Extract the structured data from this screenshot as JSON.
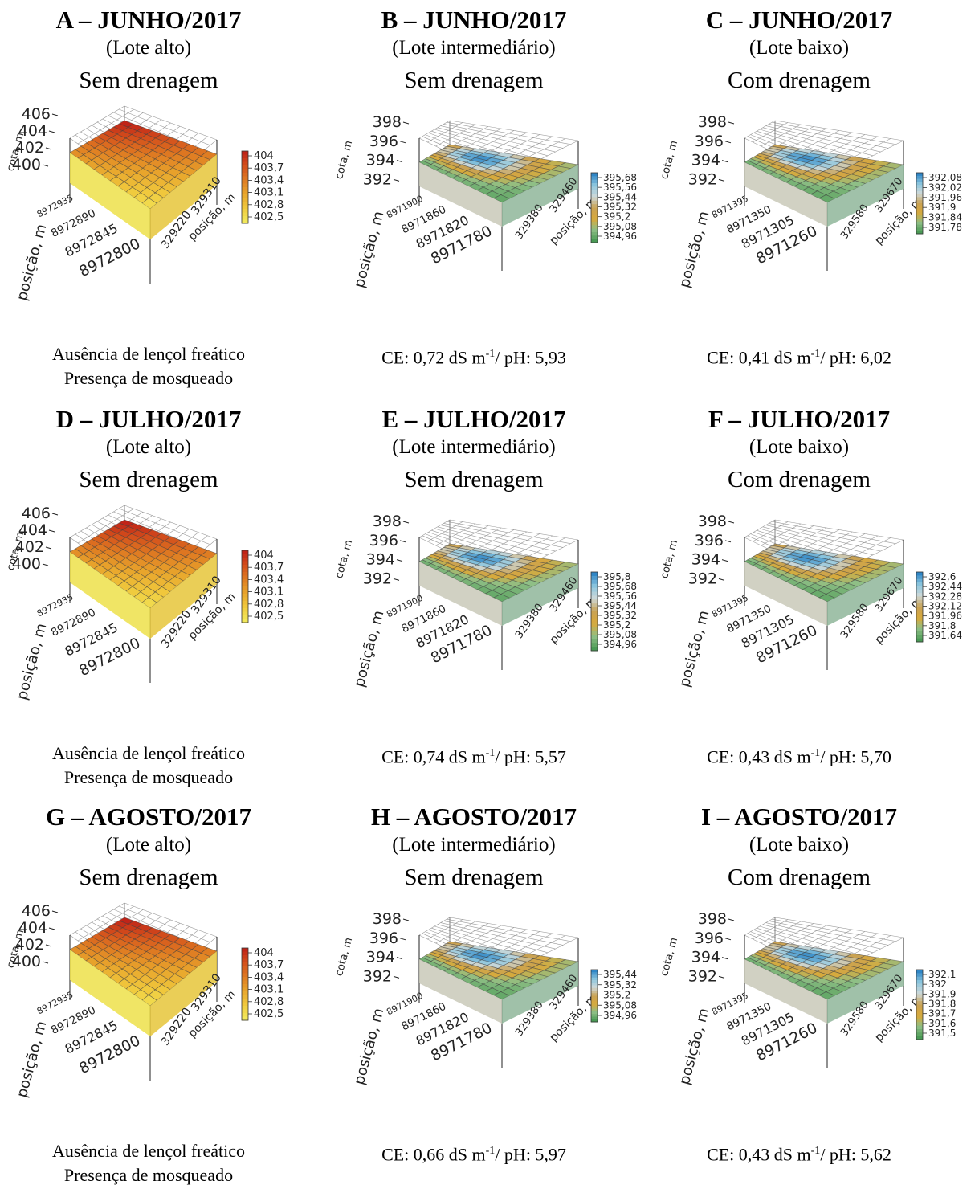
{
  "panels": [
    {
      "title": "A – JUNHO/2017",
      "lot": "(Lote alto)",
      "drainage": "Sem drenagem",
      "scheme": "red",
      "z_ticks": [
        "406",
        "404",
        "402",
        "400"
      ],
      "y_ticks": [
        "8972935",
        "8972890",
        "8972845",
        "8972800"
      ],
      "x_ticks": [
        "329220",
        "329310"
      ],
      "z_label": "cota, m",
      "y_label": "posição, m",
      "x_label": "posição, m",
      "legend": [
        "404",
        "403,7",
        "403,4",
        "403,1",
        "402,8",
        "402,5"
      ],
      "note_lines": [
        "Ausência de lençol freático",
        "Presença de mosqueado"
      ]
    },
    {
      "title": "B – JUNHO/2017",
      "lot": "(Lote intermediário)",
      "drainage": "Sem drenagem",
      "scheme": "bgb",
      "z_ticks": [
        "398",
        "396",
        "394",
        "392"
      ],
      "y_ticks": [
        "8971900",
        "8971860",
        "8971820",
        "8971780"
      ],
      "x_ticks": [
        "329380",
        "329460"
      ],
      "z_label": "cota, m",
      "y_label": "posição, m",
      "x_label": "posição, m",
      "legend": [
        "395,68",
        "395,56",
        "395,44",
        "395,32",
        "395,2",
        "395,08",
        "394,96"
      ],
      "ce": {
        "prefix": "CE: 0,72 dS m",
        "sup": "-1",
        "suffix": "/ pH: 5,93"
      }
    },
    {
      "title": "C – JUNHO/2017",
      "lot": "(Lote baixo)",
      "drainage": "Com drenagem",
      "scheme": "bgb",
      "z_ticks": [
        "398",
        "396",
        "394",
        "392"
      ],
      "y_ticks": [
        "8971395",
        "8971350",
        "8971305",
        "8971260"
      ],
      "x_ticks": [
        "329580",
        "329670"
      ],
      "z_label": "cota, m",
      "y_label": "posição, m",
      "x_label": "posição, m",
      "legend": [
        "392,08",
        "392,02",
        "391,96",
        "391,9",
        "391,84",
        "391,78"
      ],
      "ce": {
        "prefix": "CE: 0,41 dS m",
        "sup": "-1",
        "suffix": "/ pH: 6,02"
      }
    },
    {
      "title": "D – JULHO/2017",
      "lot": "(Lote alto)",
      "drainage": "Sem drenagem",
      "scheme": "red",
      "z_ticks": [
        "406",
        "404",
        "402",
        "400"
      ],
      "y_ticks": [
        "8972935",
        "8972890",
        "8972845",
        "8972800"
      ],
      "x_ticks": [
        "329220",
        "329310"
      ],
      "z_label": "cota, m",
      "y_label": "posição, m",
      "x_label": "posição, m",
      "legend": [
        "404",
        "403,7",
        "403,4",
        "403,1",
        "402,8",
        "402,5"
      ],
      "note_lines": [
        "Ausência de lençol freático",
        "Presença de mosqueado"
      ]
    },
    {
      "title": "E – JULHO/2017",
      "lot": "(Lote intermediário)",
      "drainage": "Sem drenagem",
      "scheme": "bgb",
      "z_ticks": [
        "398",
        "396",
        "394",
        "392"
      ],
      "y_ticks": [
        "8971900",
        "8971860",
        "8971820",
        "8971780"
      ],
      "x_ticks": [
        "329380",
        "329460"
      ],
      "z_label": "cota, m",
      "y_label": "posição, m",
      "x_label": "posição, m",
      "legend": [
        "395,8",
        "395,68",
        "395,56",
        "395,44",
        "395,32",
        "395,2",
        "395,08",
        "394,96"
      ],
      "ce": {
        "prefix": "CE: 0,74 dS m",
        "sup": "-1",
        "suffix": "/ pH: 5,57"
      }
    },
    {
      "title": "F – JULHO/2017",
      "lot": "(Lote baixo)",
      "drainage": "Com drenagem",
      "scheme": "bgb",
      "z_ticks": [
        "398",
        "396",
        "394",
        "392"
      ],
      "y_ticks": [
        "8971395",
        "8971350",
        "8971305",
        "8971260"
      ],
      "x_ticks": [
        "329580",
        "329670"
      ],
      "z_label": "cota, m",
      "y_label": "posição, m",
      "x_label": "posição, m",
      "legend": [
        "392,6",
        "392,44",
        "392,28",
        "392,12",
        "391,96",
        "391,8",
        "391,64"
      ],
      "ce": {
        "prefix": "CE: 0,43 dS m",
        "sup": "-1",
        "suffix": "/ pH: 5,70"
      }
    },
    {
      "title": "G – AGOSTO/2017",
      "lot": "(Lote alto)",
      "drainage": "Sem drenagem",
      "scheme": "red",
      "z_ticks": [
        "406",
        "404",
        "402",
        "400"
      ],
      "y_ticks": [
        "8972935",
        "8972890",
        "8972845",
        "8972800"
      ],
      "x_ticks": [
        "329220",
        "329310"
      ],
      "z_label": "cota, m",
      "y_label": "posição, m",
      "x_label": "posição, m",
      "legend": [
        "404",
        "403,7",
        "403,4",
        "403,1",
        "402,8",
        "402,5"
      ],
      "note_lines": [
        "Ausência de lençol freático",
        "Presença de mosqueado"
      ]
    },
    {
      "title": "H – AGOSTO/2017",
      "lot": "(Lote intermediário)",
      "drainage": "Sem drenagem",
      "scheme": "bgb",
      "z_ticks": [
        "398",
        "396",
        "394",
        "392"
      ],
      "y_ticks": [
        "8971900",
        "8971860",
        "8971820",
        "8971780"
      ],
      "x_ticks": [
        "329380",
        "329460"
      ],
      "z_label": "cota, m",
      "y_label": "posição, m",
      "x_label": "posição, m",
      "legend": [
        "395,44",
        "395,32",
        "395,2",
        "395,08",
        "394,96"
      ],
      "ce": {
        "prefix": "CE: 0,66 dS m",
        "sup": "-1",
        "suffix": "/ pH: 5,97"
      }
    },
    {
      "title": "I – AGOSTO/2017",
      "lot": "(Lote baixo)",
      "drainage": "Com drenagem",
      "scheme": "bgb",
      "z_ticks": [
        "398",
        "396",
        "394",
        "392"
      ],
      "y_ticks": [
        "8971395",
        "8971350",
        "8971305",
        "8971260"
      ],
      "x_ticks": [
        "329580",
        "329670"
      ],
      "z_label": "cota, m",
      "y_label": "posição, m",
      "x_label": "posição, m",
      "legend": [
        "392,1",
        "392",
        "391,9",
        "391,8",
        "391,7",
        "391,6",
        "391,5"
      ],
      "ce": {
        "prefix": "CE: 0,43 dS m",
        "sup": "-1",
        "suffix": "/ pH: 5,62"
      }
    }
  ],
  "chart_data": [
    {
      "type": "surface3d",
      "title": "A – JUNHO/2017",
      "zlabel": "cota, m",
      "ylabel": "posição, m",
      "xlabel": "posição, m",
      "zlim": [
        400,
        406
      ],
      "x_ticks": [
        329220,
        329310
      ],
      "y_ticks": [
        8972800,
        8972845,
        8972890,
        8972935
      ],
      "colorbar": [
        404,
        403.7,
        403.4,
        403.1,
        402.8,
        402.5
      ]
    },
    {
      "type": "surface3d",
      "title": "B – JUNHO/2017",
      "zlabel": "cota, m",
      "ylabel": "posição, m",
      "xlabel": "posição, m",
      "zlim": [
        392,
        398
      ],
      "x_ticks": [
        329380,
        329460
      ],
      "y_ticks": [
        8971780,
        8971820,
        8971860,
        8971900
      ],
      "colorbar": [
        395.68,
        395.56,
        395.44,
        395.32,
        395.2,
        395.08,
        394.96
      ]
    },
    {
      "type": "surface3d",
      "title": "C – JUNHO/2017",
      "zlabel": "cota, m",
      "ylabel": "posição, m",
      "xlabel": "posição, m",
      "zlim": [
        392,
        398
      ],
      "x_ticks": [
        329580,
        329670
      ],
      "y_ticks": [
        8971260,
        8971305,
        8971350,
        8971395
      ],
      "colorbar": [
        392.08,
        392.02,
        391.96,
        391.9,
        391.84,
        391.78
      ]
    },
    {
      "type": "surface3d",
      "title": "D – JULHO/2017",
      "zlabel": "cota, m",
      "ylabel": "posição, m",
      "xlabel": "posição, m",
      "zlim": [
        400,
        406
      ],
      "x_ticks": [
        329220,
        329310
      ],
      "y_ticks": [
        8972800,
        8972845,
        8972890,
        8972935
      ],
      "colorbar": [
        404,
        403.7,
        403.4,
        403.1,
        402.8,
        402.5
      ]
    },
    {
      "type": "surface3d",
      "title": "E – JULHO/2017",
      "zlabel": "cota, m",
      "ylabel": "posição, m",
      "xlabel": "posição, m",
      "zlim": [
        392,
        398
      ],
      "x_ticks": [
        329380,
        329460
      ],
      "y_ticks": [
        8971780,
        8971820,
        8971860,
        8971900
      ],
      "colorbar": [
        395.8,
        395.68,
        395.56,
        395.44,
        395.32,
        395.2,
        395.08,
        394.96
      ]
    },
    {
      "type": "surface3d",
      "title": "F – JULHO/2017",
      "zlabel": "cota, m",
      "ylabel": "posição, m",
      "xlabel": "posição, m",
      "zlim": [
        392,
        398
      ],
      "x_ticks": [
        329580,
        329670
      ],
      "y_ticks": [
        8971260,
        8971305,
        8971350,
        8971395
      ],
      "colorbar": [
        392.6,
        392.44,
        392.28,
        392.12,
        391.96,
        391.8,
        391.64
      ]
    },
    {
      "type": "surface3d",
      "title": "G – AGOSTO/2017",
      "zlabel": "cota, m",
      "ylabel": "posição, m",
      "xlabel": "posição, m",
      "zlim": [
        400,
        406
      ],
      "x_ticks": [
        329220,
        329310
      ],
      "y_ticks": [
        8972800,
        8972845,
        8972890,
        8972935
      ],
      "colorbar": [
        404,
        403.7,
        403.4,
        403.1,
        402.8,
        402.5
      ]
    },
    {
      "type": "surface3d",
      "title": "H – AGOSTO/2017",
      "zlabel": "cota, m",
      "ylabel": "posição, m",
      "xlabel": "posição, m",
      "zlim": [
        392,
        398
      ],
      "x_ticks": [
        329380,
        329460
      ],
      "y_ticks": [
        8971780,
        8971820,
        8971860,
        8971900
      ],
      "colorbar": [
        395.44,
        395.32,
        395.2,
        395.08,
        394.96
      ]
    },
    {
      "type": "surface3d",
      "title": "I – AGOSTO/2017",
      "zlabel": "cota, m",
      "ylabel": "posição, m",
      "xlabel": "posição, m",
      "zlim": [
        392,
        398
      ],
      "x_ticks": [
        329580,
        329670
      ],
      "y_ticks": [
        8971260,
        8971305,
        8971350,
        8971395
      ],
      "colorbar": [
        392.1,
        392,
        391.9,
        391.8,
        391.7,
        391.6,
        391.5
      ]
    }
  ]
}
